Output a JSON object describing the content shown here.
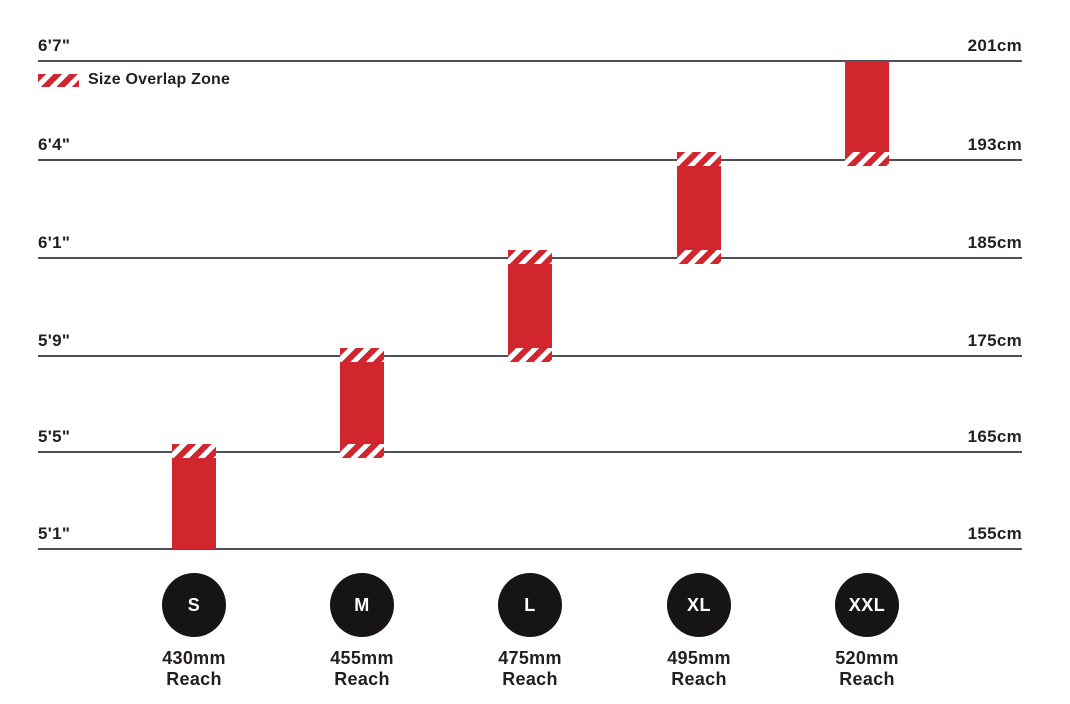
{
  "chart_data": {
    "type": "bar",
    "title": "",
    "description": "Bike frame size guide: rider height ranges (vertical red bars) per frame size, with hatched size-overlap zones straddling each height gridline",
    "legend": {
      "label": "Size Overlap Zone",
      "position": "top-left",
      "swatch": "red-white-diagonal-hatch"
    },
    "grid": "horizontal-lines-only",
    "rows": [
      {
        "ft": "6'7\"",
        "cm": "201cm"
      },
      {
        "ft": "6'4\"",
        "cm": "193cm"
      },
      {
        "ft": "6'1\"",
        "cm": "185cm"
      },
      {
        "ft": "5'9\"",
        "cm": "175cm"
      },
      {
        "ft": "5'5\"",
        "cm": "165cm"
      },
      {
        "ft": "5'1\"",
        "cm": "155cm"
      }
    ],
    "sizes": [
      {
        "label": "S",
        "reach_value": "430mm",
        "reach_caption": "Reach",
        "top_row": 4,
        "bottom_row": 5,
        "overlap_top": true,
        "overlap_bottom": false,
        "height_range_ft": "5'1\"-5'5\"",
        "height_range_cm": "155-165cm"
      },
      {
        "label": "M",
        "reach_value": "455mm",
        "reach_caption": "Reach",
        "top_row": 3,
        "bottom_row": 4,
        "overlap_top": true,
        "overlap_bottom": true,
        "height_range_ft": "5'5\"-5'9\"",
        "height_range_cm": "165-175cm"
      },
      {
        "label": "L",
        "reach_value": "475mm",
        "reach_caption": "Reach",
        "top_row": 2,
        "bottom_row": 3,
        "overlap_top": true,
        "overlap_bottom": true,
        "height_range_ft": "5'9\"-6'1\"",
        "height_range_cm": "175-185cm"
      },
      {
        "label": "XL",
        "reach_value": "495mm",
        "reach_caption": "Reach",
        "top_row": 1,
        "bottom_row": 2,
        "overlap_top": true,
        "overlap_bottom": true,
        "height_range_ft": "6'1\"-6'4\"",
        "height_range_cm": "185-193cm"
      },
      {
        "label": "XXL",
        "reach_value": "520mm",
        "reach_caption": "Reach",
        "top_row": 0,
        "bottom_row": 1,
        "overlap_top": false,
        "overlap_bottom": true,
        "height_range_ft": "6'4\"-6'7\"",
        "height_range_cm": "193-201cm"
      }
    ],
    "colors": {
      "bar": "#d2262e",
      "gridline": "#4f4f51",
      "text": "#231f20",
      "circle": "#161415",
      "circle_text": "#ffffff",
      "background": "#ffffff"
    }
  }
}
